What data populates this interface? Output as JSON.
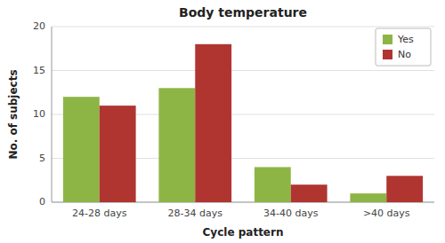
{
  "chart_data": {
    "type": "bar",
    "title": "Body temperature",
    "xlabel": "Cycle pattern",
    "ylabel": "No. of subjects",
    "categories": [
      "24-28 days",
      "28-34 days",
      "34-40 days",
      ">40 days"
    ],
    "series": [
      {
        "name": "Yes",
        "color": "#8db545",
        "values": [
          12,
          13,
          4,
          1
        ]
      },
      {
        "name": "No",
        "color": "#b03530",
        "values": [
          11,
          18,
          2,
          3
        ]
      }
    ],
    "ylim": [
      0,
      20
    ],
    "yticks": [
      0,
      5,
      10,
      15,
      20
    ],
    "grid": true,
    "legend": "upper right"
  }
}
